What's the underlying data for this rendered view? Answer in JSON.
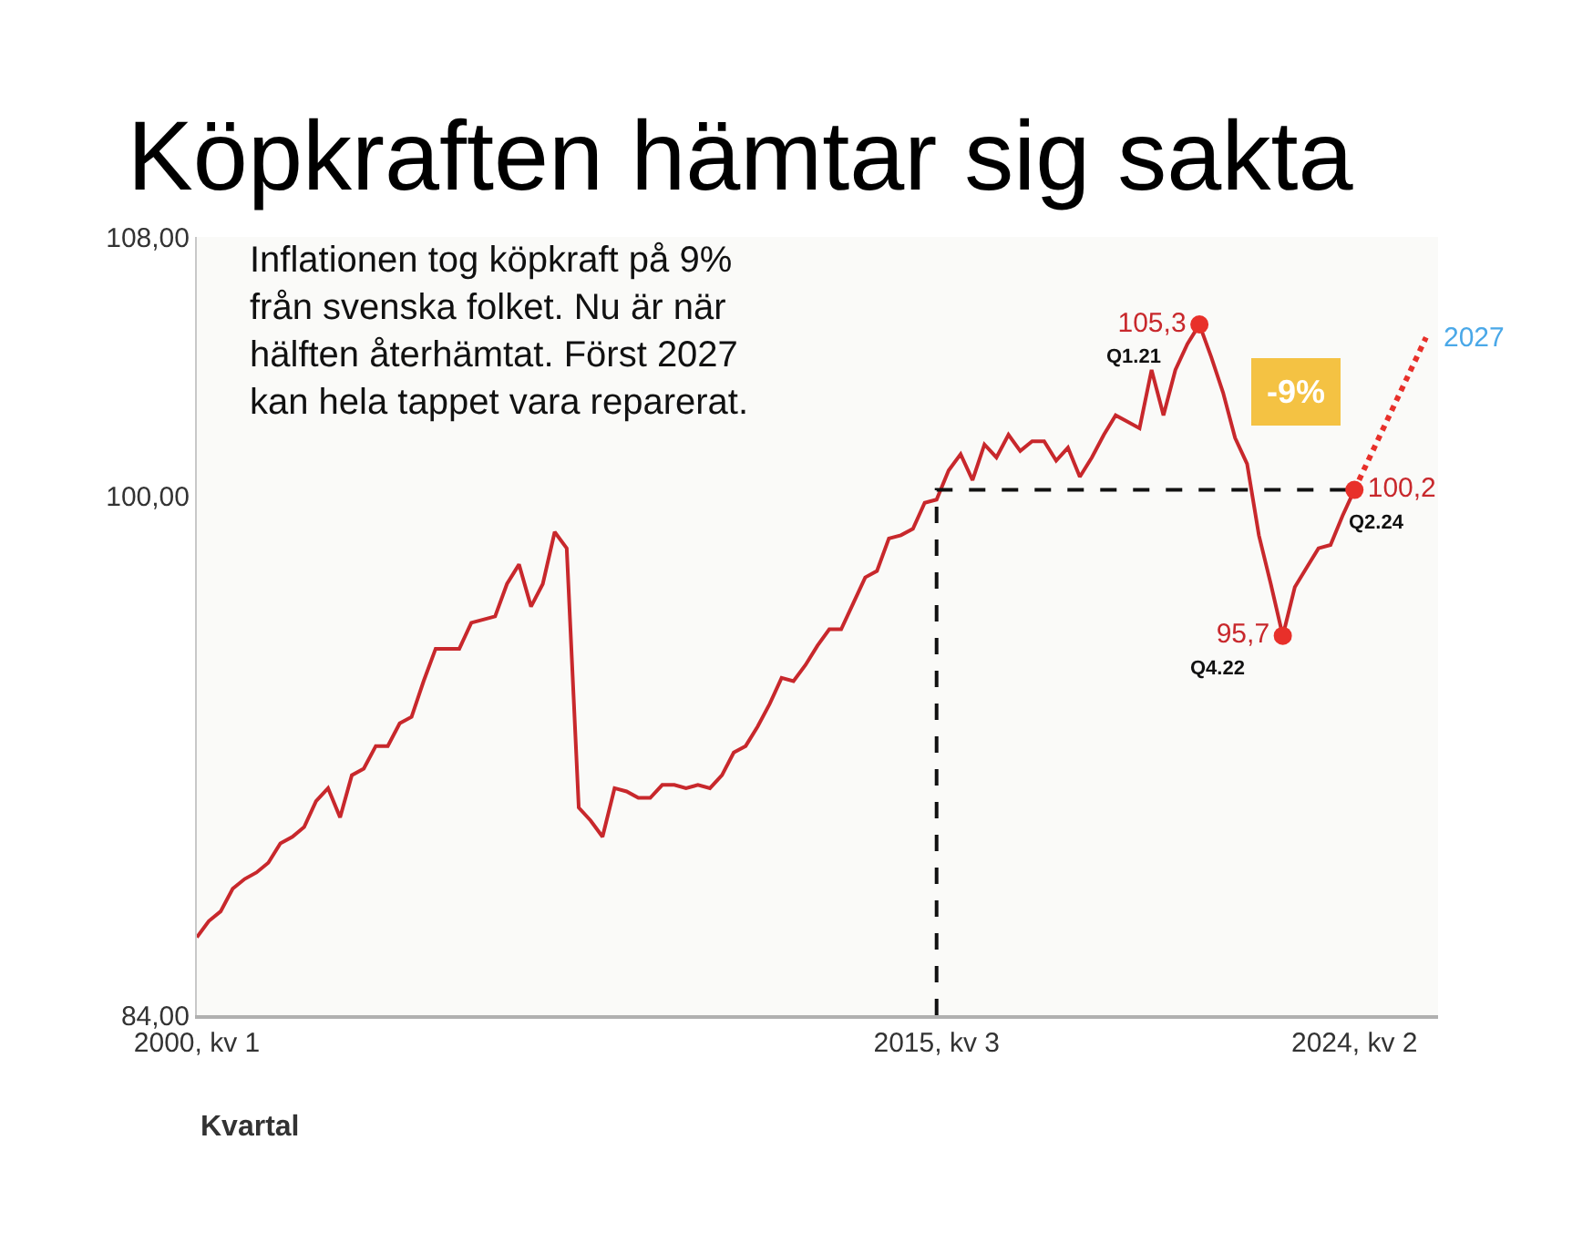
{
  "chart_data": {
    "type": "line",
    "title": "Köpkraften hämtar sig sakta",
    "xlabel": "Kvartal",
    "x": [
      "2000-01",
      "2000-04",
      "2000-07",
      "2000-10",
      "2001-01",
      "2001-04",
      "2001-07",
      "2001-10",
      "2002-01",
      "2002-04",
      "2002-07",
      "2002-10",
      "2003-01",
      "2003-04",
      "2003-07",
      "2003-10",
      "2004-01",
      "2004-04",
      "2004-07",
      "2004-10",
      "2005-01",
      "2005-04",
      "2005-07",
      "2005-10",
      "2006-01",
      "2006-04",
      "2006-07",
      "2006-10",
      "2007-01",
      "2007-04",
      "2007-07",
      "2007-10",
      "2008-01",
      "2008-04",
      "2008-07",
      "2008-10",
      "2009-01",
      "2009-04",
      "2009-07",
      "2009-10",
      "2010-01",
      "2010-04",
      "2010-07",
      "2010-10",
      "2011-01",
      "2011-04",
      "2011-07",
      "2011-10",
      "2012-01",
      "2012-04",
      "2012-07",
      "2012-10",
      "2013-01",
      "2013-04",
      "2013-07",
      "2013-10",
      "2014-01",
      "2014-04",
      "2014-07",
      "2014-10",
      "2015-01",
      "2015-04",
      "2015-07",
      "2015-10",
      "2016-01",
      "2016-04",
      "2016-07",
      "2016-10",
      "2017-01",
      "2017-04",
      "2017-07",
      "2017-10",
      "2018-01",
      "2018-04",
      "2018-07",
      "2018-10",
      "2019-01",
      "2019-04",
      "2019-07",
      "2019-10",
      "2020-01",
      "2020-04",
      "2020-07",
      "2020-10",
      "2021-01",
      "2021-04",
      "2021-07",
      "2021-10",
      "2022-01",
      "2022-04",
      "2022-07",
      "2022-10",
      "2023-01",
      "2023-04",
      "2023-07",
      "2023-10",
      "2024-01",
      "2024-04"
    ],
    "series": [
      {
        "color": "#c8282c",
        "values": [
          86.4,
          86.9,
          87.2,
          87.9,
          88.2,
          88.4,
          88.7,
          89.3,
          89.5,
          89.8,
          90.6,
          91.0,
          90.1,
          91.4,
          91.6,
          92.3,
          92.3,
          93.0,
          93.2,
          94.3,
          95.3,
          95.3,
          95.3,
          96.1,
          96.2,
          96.3,
          97.3,
          97.9,
          96.6,
          97.3,
          98.9,
          98.4,
          90.4,
          90.0,
          89.5,
          91.0,
          90.9,
          90.7,
          90.7,
          91.1,
          91.1,
          91.0,
          91.1,
          91.0,
          91.4,
          92.1,
          92.3,
          92.9,
          93.6,
          94.4,
          94.3,
          94.8,
          95.4,
          95.9,
          95.9,
          96.7,
          97.5,
          97.7,
          98.7,
          98.8,
          99.0,
          99.8,
          99.9,
          100.8,
          101.3,
          100.5,
          101.6,
          101.2,
          101.9,
          101.4,
          101.7,
          101.7,
          101.1,
          101.5,
          100.6,
          101.2,
          101.9,
          102.5,
          102.3,
          102.1,
          103.9,
          102.5,
          103.9,
          104.7,
          105.3,
          104.3,
          103.2,
          101.8,
          101.0,
          98.8,
          97.3,
          95.7,
          97.2,
          97.8,
          98.4,
          98.5,
          99.4,
          100.2
        ]
      },
      {
        "type": "line",
        "color": "#e8302a",
        "line_style": "dotted",
        "x": [
          "2024-04",
          "2025-10"
        ],
        "values": [
          100.2,
          104.9
        ]
      },
      {
        "type": "line",
        "color": "#111111",
        "line_style": "dashed",
        "x": [
          "2015-07",
          "2015-07",
          "2024-04"
        ],
        "values": [
          84,
          100.2,
          100.2
        ]
      },
      {
        "type": "scatter",
        "color": "#e8302a",
        "marker": "circle",
        "x": [
          "2021-01",
          "2022-10",
          "2024-04"
        ],
        "values": [
          105.3,
          95.7,
          100.2
        ],
        "value_labels": [
          "105,3",
          "95,7",
          "100,2"
        ]
      }
    ],
    "xlim": [
      "2000-01",
      "2026-01"
    ],
    "xticks": [
      {
        "value": "2000-01",
        "label": "2000, kv 1"
      },
      {
        "value": "2015-07",
        "label": "2015, kv 3"
      },
      {
        "value": "2024-04",
        "label": "2024, kv 2"
      }
    ],
    "ylim": [
      84,
      108
    ],
    "yticks": [
      {
        "value": 84,
        "label": "84,00"
      },
      {
        "value": 100,
        "label": "100,00"
      },
      {
        "value": 108,
        "label": "108,00"
      }
    ],
    "grid": false,
    "annotations": [
      "Inflationen tog köpkraft på 9%\nfrån svenska folket. Nu är när\nhälften återhämtat. Först 2027\nkan hela tappet vara reparerat.",
      {
        "text": "Q1.21",
        "x": "2021-01",
        "y": 105.3
      },
      {
        "text": "Q4.22",
        "x": "2022-10",
        "y": 95.7
      },
      {
        "text": "Q2.24",
        "x": "2024-04",
        "y": 100.2
      },
      {
        "text": "2027",
        "x": "2025-10",
        "y": 104.9
      },
      "-9%"
    ]
  }
}
